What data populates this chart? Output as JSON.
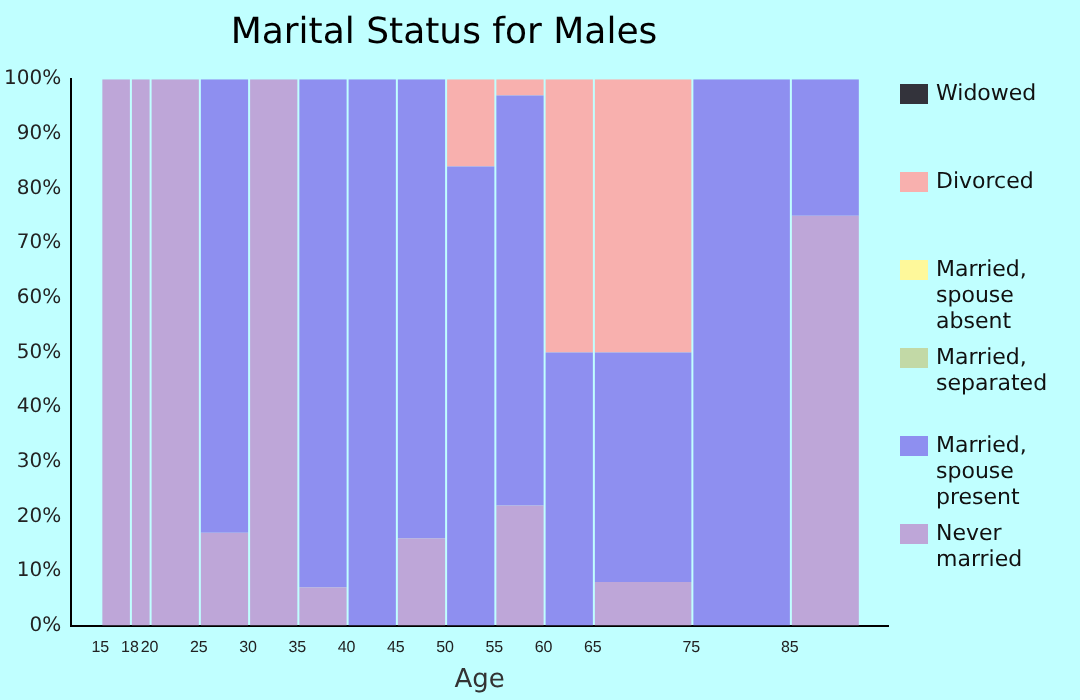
{
  "chart_data": {
    "type": "bar",
    "title": "Marital Status for Males",
    "xlabel": "Age",
    "stacked": true,
    "x": [
      16.5,
      19,
      22.5,
      27.5,
      32.5,
      37.5,
      42.5,
      47.5,
      52.5,
      57.5,
      62.5,
      70,
      80,
      88.5
    ],
    "xlim": [
      15,
      92
    ],
    "xticks": [
      15,
      18,
      20,
      25,
      30,
      35,
      40,
      45,
      50,
      55,
      60,
      65,
      75,
      85
    ],
    "ylim": [
      0,
      100
    ],
    "yticks": [
      {
        "value": 0,
        "label": "0%"
      },
      {
        "value": 10,
        "label": "10%"
      },
      {
        "value": 20,
        "label": "20%"
      },
      {
        "value": 30,
        "label": "30%"
      },
      {
        "value": 40,
        "label": "40%"
      },
      {
        "value": 50,
        "label": "50%"
      },
      {
        "value": 60,
        "label": "60%"
      },
      {
        "value": 70,
        "label": "70%"
      },
      {
        "value": 80,
        "label": "80%"
      },
      {
        "value": 90,
        "label": "90%"
      },
      {
        "value": 100,
        "label": "100%"
      }
    ],
    "grid": false,
    "legend": "right",
    "series": [
      {
        "name": "Never married",
        "color": "#bea6d8",
        "values": [
          100,
          100,
          100,
          17,
          100,
          7,
          0,
          16,
          0,
          22,
          0,
          8,
          0,
          75
        ]
      },
      {
        "name": "Married, spouse present",
        "color": "#8e8ff0",
        "values": [
          0,
          0,
          0,
          83,
          0,
          93,
          100,
          84,
          84,
          75,
          50,
          42,
          100,
          25
        ]
      },
      {
        "name": "Married, separated",
        "color": "#c2d9a6",
        "values": [
          0,
          0,
          0,
          0,
          0,
          0,
          0,
          0,
          0,
          0,
          0,
          0,
          0,
          0
        ]
      },
      {
        "name": "Married, spouse absent",
        "color": "#fef89a",
        "values": [
          0,
          0,
          0,
          0,
          0,
          0,
          0,
          0,
          0,
          0,
          0,
          0,
          0,
          0
        ]
      },
      {
        "name": "Divorced",
        "color": "#f8b0ae",
        "values": [
          0,
          0,
          0,
          0,
          0,
          0,
          0,
          0,
          16,
          3,
          50,
          50,
          0,
          0
        ]
      },
      {
        "name": "Widowed",
        "color": "#33333b",
        "values": [
          0,
          0,
          0,
          0,
          0,
          0,
          0,
          0,
          0,
          0,
          0,
          0,
          0,
          0
        ]
      }
    ]
  }
}
